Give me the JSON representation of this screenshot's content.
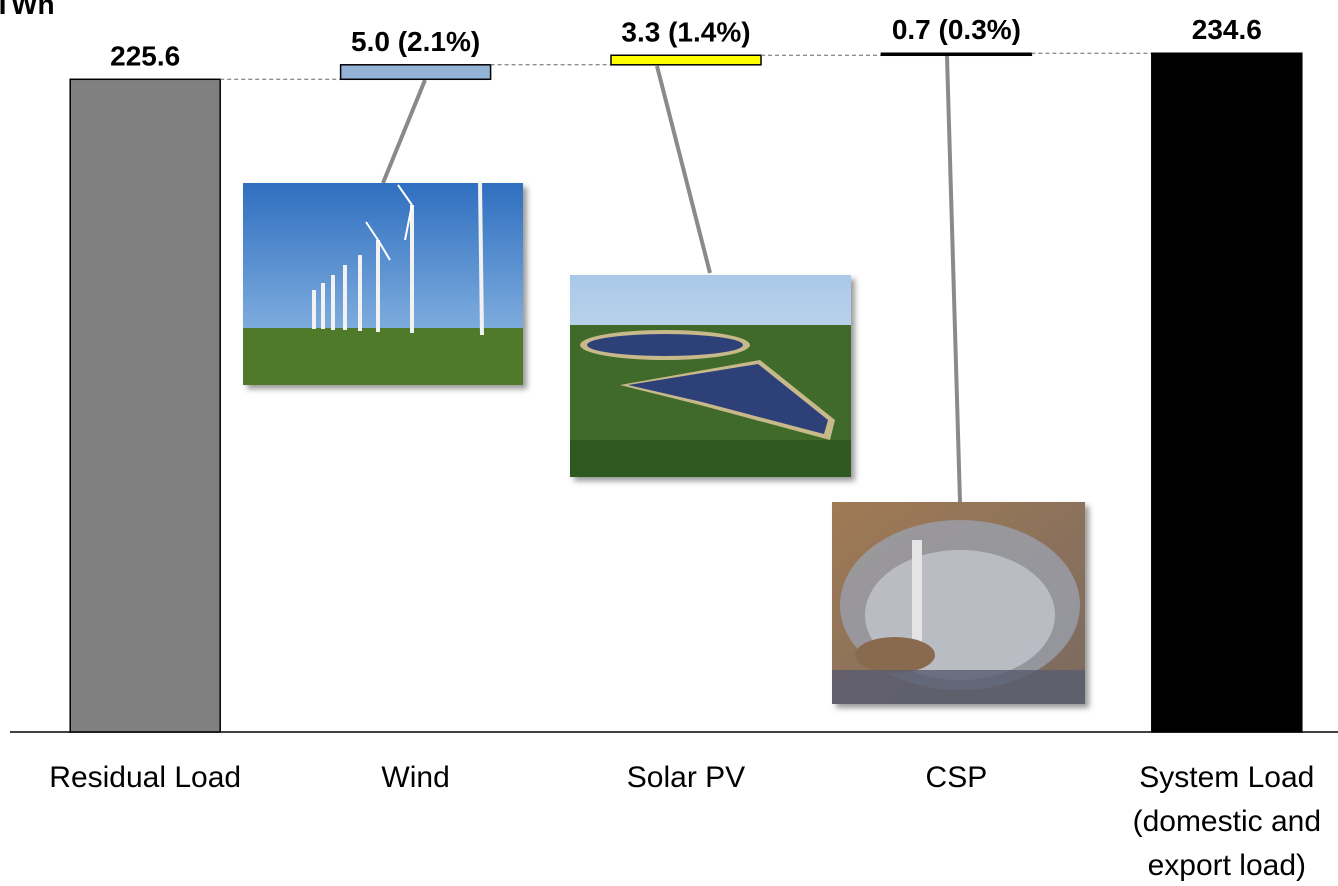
{
  "chart_data": {
    "type": "waterfall",
    "ylabel": "TWh",
    "categories": [
      "Residual Load",
      "Wind",
      "Solar PV",
      "CSP",
      "System Load (domestic and export load)"
    ],
    "values": [
      225.6,
      5.0,
      3.3,
      0.7,
      234.6
    ],
    "value_labels": [
      "225.6",
      "5.0 (2.1%)",
      "3.3 (1.4%)",
      "0.7 (0.3%)",
      "234.6"
    ],
    "is_total": [
      true,
      false,
      false,
      false,
      true
    ],
    "colors": [
      "#808080",
      "#95b3d7",
      "#ffff00",
      "#000000",
      "#000000"
    ],
    "ylim": [
      0,
      253
    ]
  }
}
